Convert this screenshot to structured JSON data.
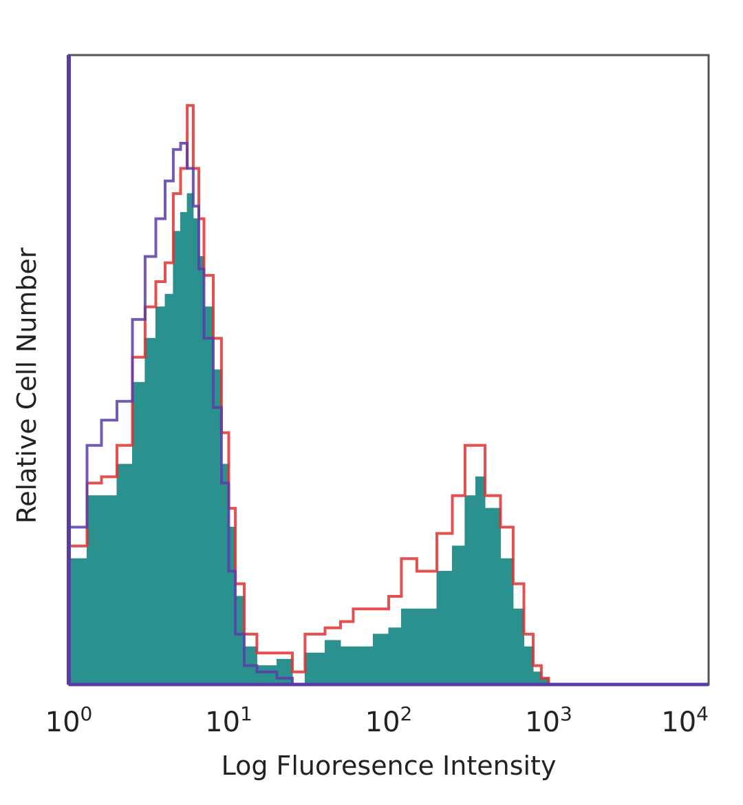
{
  "chart_data": {
    "type": "area",
    "xlabel": "Log Fluoresence Intensity",
    "ylabel": "Relative Cell Number",
    "xscale": "log",
    "xlim": [
      1,
      10000
    ],
    "ylim": [
      0,
      1
    ],
    "x_ticks": [
      {
        "base": "10",
        "exp": "0"
      },
      {
        "base": "10",
        "exp": "1"
      },
      {
        "base": "10",
        "exp": "2"
      },
      {
        "base": "10",
        "exp": "3"
      },
      {
        "base": "10",
        "exp": "4"
      }
    ],
    "grid": false,
    "series": [
      {
        "color": "#2a918e",
        "style": "filled",
        "x": [
          1.0,
          1.3,
          1.6,
          2.0,
          2.5,
          3.0,
          3.5,
          4.0,
          4.5,
          5.0,
          5.5,
          6.0,
          6.5,
          7.0,
          8.0,
          9.0,
          10.0,
          11.0,
          12.5,
          15.0,
          20.0,
          25.0,
          30.0,
          40.0,
          50.0,
          60.0,
          80.0,
          100.0,
          120.0,
          150.0,
          200.0,
          250.0,
          300.0,
          350.0,
          400.0,
          500.0,
          600.0,
          700.0,
          800.0,
          900.0,
          1000.0
        ],
        "values": [
          0.2,
          0.3,
          0.3,
          0.35,
          0.48,
          0.55,
          0.6,
          0.62,
          0.72,
          0.75,
          0.78,
          0.74,
          0.68,
          0.6,
          0.5,
          0.35,
          0.25,
          0.14,
          0.06,
          0.03,
          0.04,
          0.0,
          0.05,
          0.07,
          0.06,
          0.06,
          0.08,
          0.09,
          0.12,
          0.12,
          0.18,
          0.22,
          0.3,
          0.33,
          0.28,
          0.2,
          0.12,
          0.06,
          0.02,
          0.01,
          0.0
        ]
      },
      {
        "color": "#e03030",
        "style": "line",
        "x": [
          1.0,
          1.3,
          1.6,
          2.0,
          2.5,
          3.0,
          3.5,
          4.0,
          4.5,
          5.0,
          5.5,
          6.0,
          6.5,
          7.0,
          8.0,
          9.0,
          10.0,
          11.0,
          12.5,
          15.0,
          20.0,
          25.0,
          30.0,
          40.0,
          50.0,
          60.0,
          80.0,
          100.0,
          120.0,
          150.0,
          200.0,
          250.0,
          300.0,
          350.0,
          400.0,
          500.0,
          600.0,
          700.0,
          800.0,
          900.0,
          1000.0
        ],
        "values": [
          0.22,
          0.32,
          0.33,
          0.38,
          0.52,
          0.6,
          0.64,
          0.67,
          0.78,
          0.82,
          0.92,
          0.82,
          0.74,
          0.65,
          0.55,
          0.4,
          0.28,
          0.16,
          0.08,
          0.05,
          0.05,
          0.02,
          0.08,
          0.09,
          0.1,
          0.12,
          0.12,
          0.14,
          0.2,
          0.18,
          0.24,
          0.3,
          0.38,
          0.38,
          0.3,
          0.25,
          0.16,
          0.08,
          0.03,
          0.01,
          0.0
        ]
      },
      {
        "color": "#5a3ca8",
        "style": "line",
        "x": [
          1.0,
          1.3,
          1.6,
          2.0,
          2.5,
          3.0,
          3.5,
          4.0,
          4.5,
          5.0,
          5.5,
          6.0,
          6.5,
          7.0,
          8.0,
          9.0,
          10.0,
          11.0,
          12.5,
          15.0,
          20.0,
          25.0,
          30.0
        ],
        "values": [
          0.25,
          0.38,
          0.42,
          0.45,
          0.58,
          0.68,
          0.74,
          0.8,
          0.85,
          0.86,
          0.82,
          0.76,
          0.66,
          0.55,
          0.44,
          0.32,
          0.18,
          0.08,
          0.03,
          0.02,
          0.01,
          0.0,
          0.0
        ]
      }
    ]
  }
}
